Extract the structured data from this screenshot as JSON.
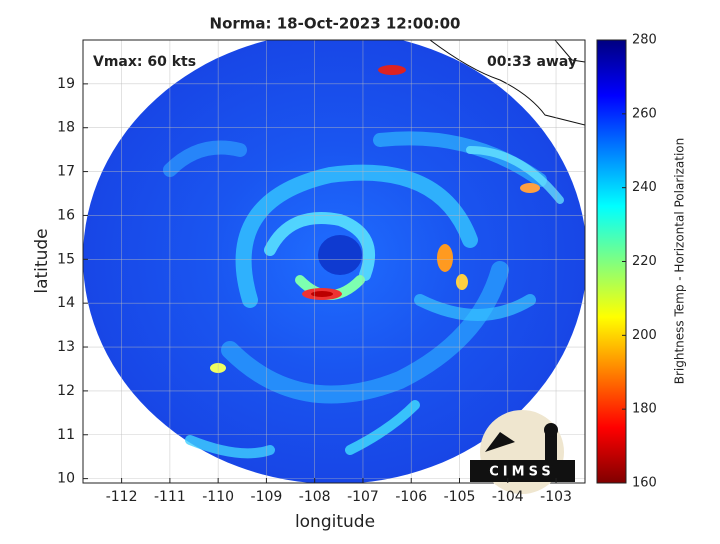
{
  "chart_data": {
    "type": "image",
    "title": "Norma: 18-Oct-2023 12:00:00",
    "annotations": [
      "Vmax: 60 kts",
      "00:33 away"
    ],
    "x_label": "longitude",
    "y_label": "latitude",
    "xlim": [
      -112.8,
      -102.4
    ],
    "xticks": [
      -112,
      -111,
      -110,
      -109,
      -108,
      -107,
      -106,
      -105,
      -104,
      -103
    ],
    "ylim": [
      9.9,
      20
    ],
    "yticks": [
      10,
      11,
      12,
      13,
      14,
      15,
      16,
      17,
      18,
      19
    ],
    "grid": true,
    "colorbar": {
      "label": "Brightness Temp - Horizontal Polarization",
      "lim": [
        160,
        280
      ],
      "ticks": [
        160,
        180,
        200,
        220,
        240,
        260,
        280
      ],
      "colormap": [
        "#800000",
        "#ff0000",
        "#ff8000",
        "#ffff00",
        "#80ff80",
        "#00ffff",
        "#0080ff",
        "#0000ff",
        "#000080"
      ]
    },
    "logo": "CIMSS"
  }
}
